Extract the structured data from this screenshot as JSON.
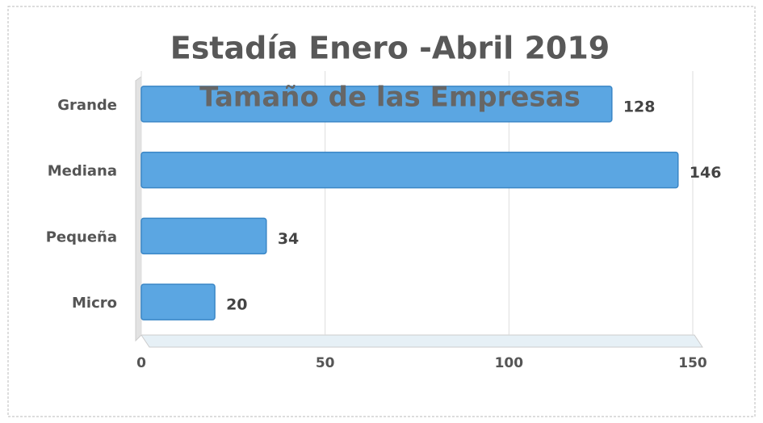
{
  "chart_data": {
    "type": "bar",
    "orientation": "horizontal",
    "title": "Estadía Enero -Abril 2019",
    "subtitle": "Tamaño  de las Empresas",
    "categories": [
      "Grande",
      "Mediana",
      "Pequeña",
      "Micro"
    ],
    "values": [
      128,
      146,
      34,
      20
    ],
    "color": "#5ba6e2",
    "xlim": [
      0,
      150
    ],
    "xticks": [
      0,
      50,
      100,
      150
    ],
    "grid": true
  }
}
